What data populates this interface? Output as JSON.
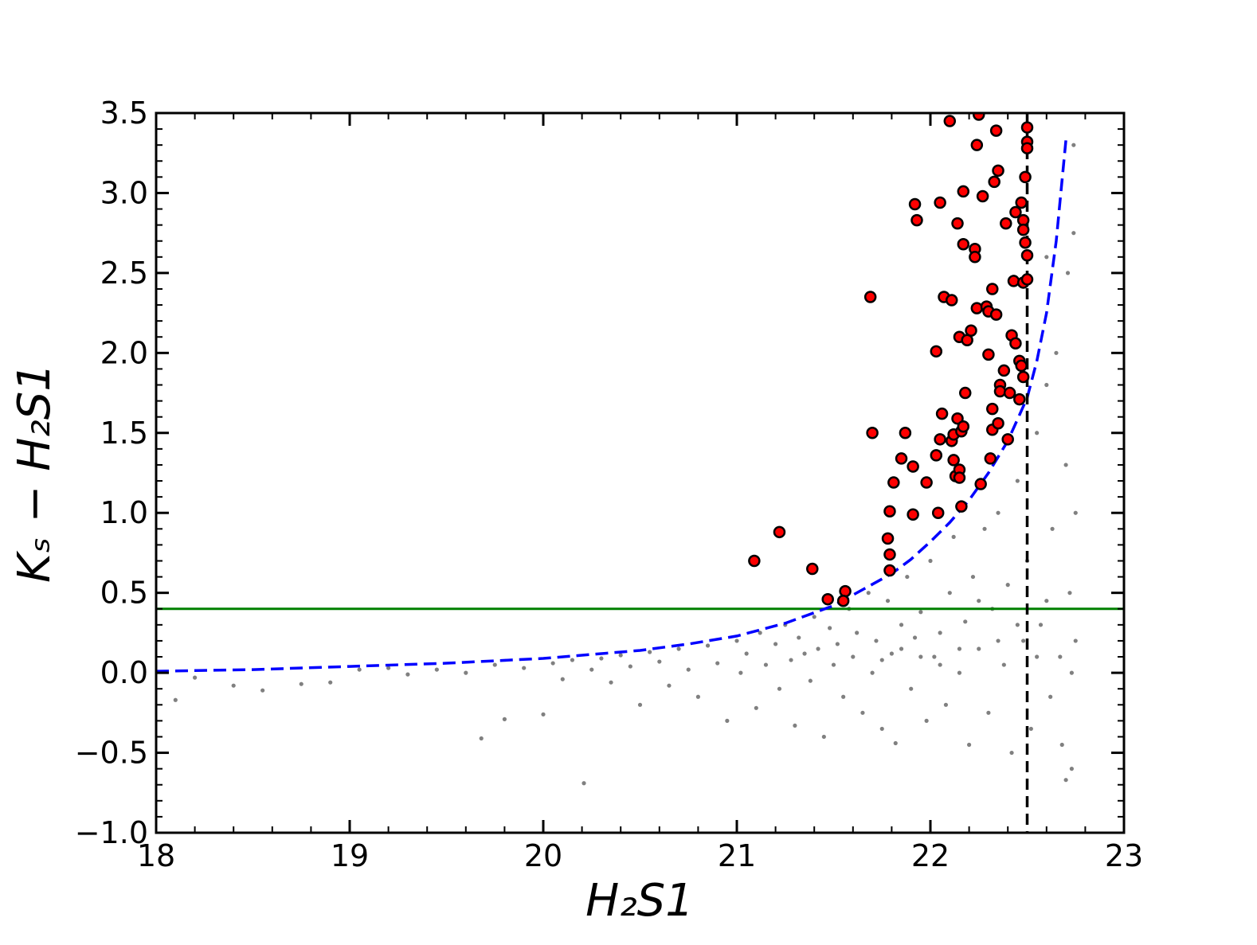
{
  "chart_data": {
    "type": "scatter",
    "xlabel": "H₂S1",
    "ylabel": "Kₛ − H₂S1",
    "xlim": [
      18,
      23
    ],
    "ylim": [
      -1.0,
      3.5
    ],
    "xticks": [
      18,
      19,
      20,
      21,
      22,
      23
    ],
    "yticks": [
      {
        "value": -1.0,
        "label": "−1.0"
      },
      {
        "value": -0.5,
        "label": "−0.5"
      },
      {
        "value": 0,
        "label": "0.0"
      },
      0.5,
      {
        "value": 1,
        "label": "1.0"
      },
      1.5,
      {
        "value": 2,
        "label": "2.0"
      },
      2.5,
      {
        "value": 3,
        "label": "3.0"
      },
      3.5
    ],
    "xminorticks": [
      18.2,
      18.4,
      18.6,
      18.8,
      19.2,
      19.4,
      19.6,
      19.8,
      20.2,
      20.4,
      20.6,
      20.8,
      21.2,
      21.4,
      21.6,
      21.8,
      22.2,
      22.4,
      22.6,
      22.8
    ],
    "yminorticks": [
      -0.9,
      -0.8,
      -0.7,
      -0.6,
      -0.4,
      -0.3,
      -0.2,
      -0.1,
      0.1,
      0.2,
      0.3,
      0.4,
      0.6,
      0.7,
      0.8,
      0.9,
      1.1,
      1.2,
      1.3,
      1.4,
      1.6,
      1.7,
      1.8,
      1.9,
      2.1,
      2.2,
      2.3,
      2.4,
      2.6,
      2.7,
      2.8,
      2.9,
      3.1,
      3.2,
      3.3,
      3.4
    ],
    "series": [
      {
        "color": "#808080",
        "marker": "dot",
        "x": [
          18.1,
          18.2,
          18.4,
          18.55,
          18.75,
          18.9,
          19.05,
          19.2,
          19.3,
          19.45,
          19.6,
          19.68,
          19.75,
          19.8,
          19.9,
          20.0,
          20.05,
          20.1,
          20.15,
          20.21,
          20.25,
          20.3,
          20.35,
          20.4,
          20.45,
          20.5,
          20.55,
          20.6,
          20.65,
          20.7,
          20.75,
          20.8,
          20.85,
          20.9,
          20.95,
          21.0,
          21.02,
          21.05,
          21.1,
          21.12,
          21.15,
          21.2,
          21.22,
          21.25,
          21.28,
          21.3,
          21.32,
          21.35,
          21.38,
          21.4,
          21.42,
          21.45,
          21.48,
          21.5,
          21.52,
          21.55,
          21.58,
          21.6,
          21.62,
          21.65,
          21.68,
          21.7,
          21.72,
          21.75,
          21.78,
          21.8,
          21.82,
          21.85,
          21.88,
          21.9,
          21.92,
          21.95,
          21.98,
          22.0,
          22.02,
          22.05,
          22.08,
          22.1,
          22.12,
          22.15,
          22.18,
          22.2,
          22.22,
          22.25,
          22.28,
          22.3,
          22.32,
          22.35,
          22.38,
          22.4,
          22.42,
          22.45,
          22.48,
          22.5,
          22.52,
          22.55,
          22.57,
          22.6,
          22.62,
          22.63,
          22.65,
          22.67,
          22.68,
          22.7,
          22.71,
          22.72,
          22.73,
          22.74,
          22.75,
          22.75,
          22.73,
          22.7,
          22.6,
          22.55,
          22.45,
          22.35,
          22.25,
          22.15,
          22.05,
          21.95,
          21.85,
          21.75,
          22.74,
          22.6
        ],
        "values": [
          -0.17,
          -0.03,
          -0.08,
          -0.11,
          -0.07,
          -0.06,
          0.02,
          0.03,
          -0.01,
          0.02,
          0.0,
          -0.41,
          0.05,
          -0.29,
          0.03,
          -0.26,
          0.06,
          -0.04,
          0.08,
          -0.69,
          0.02,
          0.09,
          -0.06,
          0.11,
          0.04,
          -0.2,
          0.13,
          0.07,
          -0.08,
          0.15,
          0.02,
          -0.15,
          0.17,
          0.06,
          -0.3,
          0.2,
          0.0,
          0.12,
          -0.22,
          0.25,
          0.05,
          0.18,
          -0.1,
          0.3,
          0.08,
          -0.33,
          0.22,
          0.12,
          -0.05,
          0.35,
          0.15,
          -0.4,
          0.28,
          0.05,
          0.18,
          -0.15,
          0.4,
          0.1,
          0.25,
          -0.25,
          0.5,
          0.0,
          0.2,
          -0.35,
          0.45,
          0.12,
          -0.44,
          0.3,
          0.6,
          -0.1,
          0.22,
          0.38,
          -0.3,
          0.7,
          0.1,
          0.25,
          -0.2,
          0.5,
          0.85,
          0.0,
          0.32,
          -0.45,
          0.6,
          0.15,
          0.9,
          -0.25,
          0.4,
          1.0,
          0.05,
          0.55,
          -0.5,
          1.2,
          0.2,
          0.7,
          -0.35,
          1.5,
          0.3,
          1.8,
          -0.15,
          0.9,
          2.0,
          0.1,
          -0.45,
          1.3,
          2.5,
          0.5,
          -0.6,
          2.75,
          0.2,
          1.0,
          0.0,
          -0.67,
          0.45,
          0.1,
          0.3,
          0.2,
          0.45,
          0.15,
          0.05,
          0.1,
          0.15,
          0.08,
          3.3,
          2.6
        ]
      },
      {
        "color": "#ff0000",
        "marker": "circle",
        "x": [
          21.09,
          21.22,
          21.39,
          21.47,
          21.56,
          21.55,
          21.69,
          21.7,
          21.78,
          21.79,
          21.79,
          21.79,
          21.81,
          21.85,
          21.87,
          21.91,
          21.92,
          21.93,
          21.91,
          21.98,
          22.03,
          22.03,
          22.04,
          22.05,
          22.05,
          22.06,
          22.07,
          22.1,
          22.11,
          22.11,
          22.12,
          22.12,
          22.14,
          22.13,
          22.14,
          22.15,
          22.15,
          22.16,
          22.16,
          22.17,
          22.15,
          22.17,
          22.17,
          22.18,
          22.19,
          22.21,
          22.23,
          22.23,
          22.24,
          22.24,
          22.25,
          22.26,
          22.27,
          22.29,
          22.3,
          22.3,
          22.31,
          22.32,
          22.32,
          22.32,
          22.33,
          22.34,
          22.34,
          22.35,
          22.35,
          22.36,
          22.36,
          22.38,
          22.39,
          22.4,
          22.41,
          22.42,
          22.43,
          22.44,
          22.44,
          22.46,
          22.46,
          22.47,
          22.47,
          22.48,
          22.48,
          22.48,
          22.48,
          22.49,
          22.49,
          22.5,
          22.5,
          22.5,
          22.5,
          22.5
        ],
        "values": [
          0.7,
          0.88,
          0.65,
          0.46,
          0.51,
          0.45,
          2.35,
          1.5,
          0.84,
          0.74,
          0.64,
          1.01,
          1.19,
          1.34,
          1.5,
          1.29,
          2.93,
          2.83,
          0.99,
          1.19,
          2.01,
          1.36,
          1.0,
          2.94,
          1.46,
          1.62,
          2.35,
          3.45,
          2.33,
          1.45,
          1.49,
          1.33,
          2.81,
          1.23,
          1.59,
          1.27,
          2.1,
          1.51,
          1.04,
          3.01,
          1.22,
          1.54,
          2.68,
          1.75,
          2.08,
          2.14,
          2.65,
          2.6,
          3.3,
          2.28,
          3.49,
          1.18,
          2.98,
          2.29,
          1.99,
          2.26,
          1.34,
          2.4,
          1.65,
          1.52,
          3.07,
          3.39,
          2.24,
          1.56,
          3.14,
          1.8,
          1.76,
          1.89,
          2.81,
          1.46,
          1.75,
          2.11,
          2.45,
          2.06,
          2.88,
          1.71,
          1.95,
          2.94,
          1.92,
          1.85,
          2.83,
          2.77,
          2.44,
          3.1,
          2.69,
          3.41,
          3.32,
          3.28,
          2.61,
          2.46
        ]
      }
    ],
    "curves": [
      {
        "color": "#0000ff",
        "dash": true,
        "x": [
          18,
          18.5,
          19,
          19.5,
          20,
          20.5,
          20.75,
          21,
          21.25,
          21.5,
          21.65,
          21.8,
          21.9,
          22,
          22.1,
          22.2,
          22.3,
          22.4,
          22.5,
          22.55,
          22.6,
          22.65,
          22.7
        ],
        "values": [
          0.01,
          0.02,
          0.04,
          0.06,
          0.09,
          0.14,
          0.18,
          0.23,
          0.31,
          0.42,
          0.52,
          0.62,
          0.71,
          0.82,
          0.94,
          1.08,
          1.25,
          1.45,
          1.72,
          1.95,
          2.25,
          2.7,
          3.33
        ]
      }
    ],
    "hlines": [
      {
        "value": 0.4,
        "color": "#008000"
      }
    ],
    "vlines": [
      {
        "value": 22.5,
        "color": "#000000",
        "dash": true
      }
    ]
  }
}
